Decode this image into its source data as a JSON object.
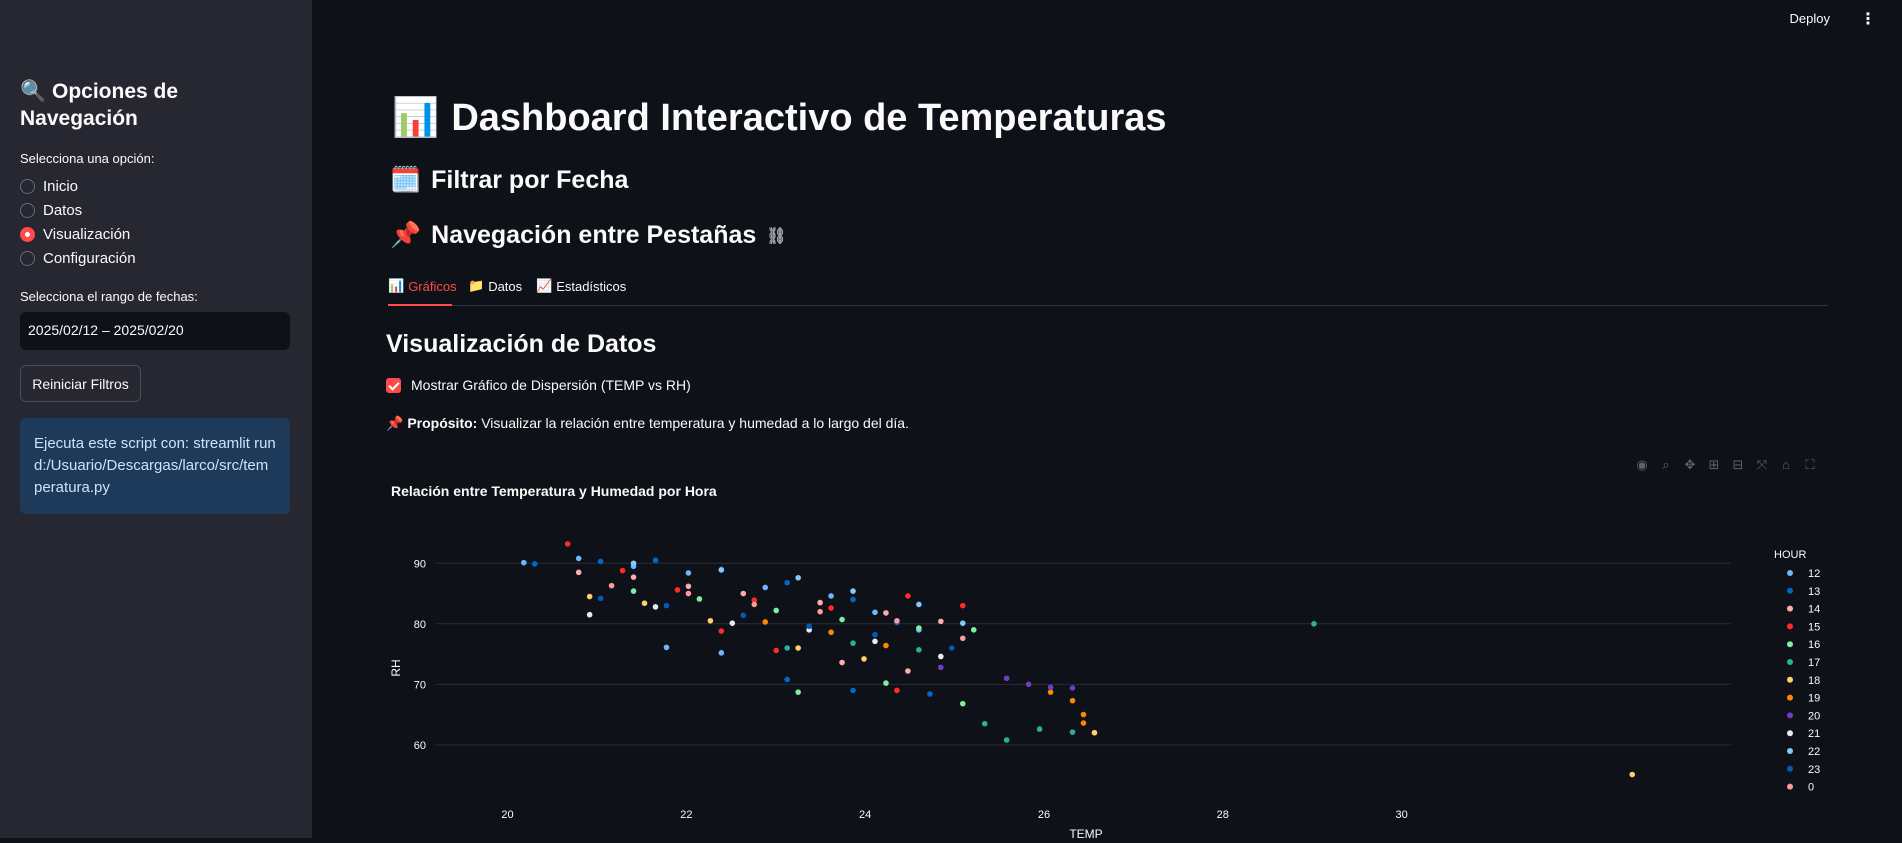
{
  "sidebar": {
    "title_icon": "search-icon",
    "title": "🔍 Opciones de Navegación",
    "radio_label": "Selecciona una opción:",
    "options": [
      "Inicio",
      "Datos",
      "Visualización",
      "Configuración"
    ],
    "selected": "Visualización",
    "date_label": "Selecciona el rango de fechas:",
    "date_value": "2025/02/12 – 2025/02/20",
    "reset_button": "Reiniciar Filtros",
    "info_text": "Ejecuta este script con: streamlit run d:/Usuario/Descargas/larco/src/temperatura.py"
  },
  "header": {
    "deploy": "Deploy",
    "menu_icon": "kebab-menu-icon"
  },
  "main": {
    "title_emoji": "📊",
    "title": "Dashboard Interactivo de Temperaturas",
    "filter_emoji": "🗓️",
    "filter_heading": "Filtrar por Fecha",
    "nav_emoji": "📌",
    "nav_heading": "Navegación entre Pestañas",
    "tabs": [
      {
        "emoji": "📊",
        "label": "Gráficos"
      },
      {
        "emoji": "📁",
        "label": "Datos"
      },
      {
        "emoji": "📈",
        "label": "Estadísticos"
      }
    ],
    "section_heading": "Visualización de Datos",
    "checkbox_label": "Mostrar Gráfico de Dispersión (TEMP vs RH)",
    "purpose_emoji": "📌",
    "purpose_label": "Propósito:",
    "purpose_text": "Visualizar la relación entre temperatura y humedad a lo largo del día."
  },
  "colors": {
    "accent": "#ff4b4b",
    "sidebar_bg": "#262730",
    "main_bg": "#0e1117",
    "info_bg": "#1e3a5a"
  },
  "chart_data": {
    "type": "scatter",
    "title": "Relación entre Temperatura y Humedad por Hora",
    "xlabel": "TEMP",
    "ylabel": "RH",
    "xlim": [
      19.2,
      31
    ],
    "ylim": [
      57,
      95
    ],
    "x_ticks": [
      20,
      22,
      24,
      26,
      28,
      30
    ],
    "y_ticks": [
      60,
      70,
      80,
      90
    ],
    "legend_title": "HOUR",
    "legend_position": "right",
    "series": [
      {
        "name": "12",
        "color": "#6fb5ff",
        "points": [
          [
            20.0,
            90.1
          ],
          [
            20.5,
            90.8
          ],
          [
            21.0,
            89.5
          ],
          [
            21.5,
            88.4
          ],
          [
            22.2,
            86.0
          ],
          [
            22.8,
            84.6
          ],
          [
            23.2,
            81.9
          ],
          [
            23.6,
            79.0
          ],
          [
            21.3,
            76.1
          ],
          [
            21.8,
            75.2
          ]
        ]
      },
      {
        "name": "13",
        "color": "#0068c9",
        "points": [
          [
            20.1,
            89.9
          ],
          [
            20.7,
            90.3
          ],
          [
            21.2,
            90.5
          ],
          [
            21.8,
            89.0
          ],
          [
            22.4,
            86.8
          ],
          [
            23.0,
            84.0
          ],
          [
            23.4,
            80.2
          ],
          [
            22.4,
            70.8
          ],
          [
            23.0,
            69.0
          ],
          [
            23.7,
            68.4
          ]
        ]
      },
      {
        "name": "14",
        "color": "#ffabab",
        "points": [
          [
            20.5,
            88.5
          ],
          [
            21.0,
            87.7
          ],
          [
            21.5,
            86.2
          ],
          [
            22.0,
            85.0
          ],
          [
            22.7,
            83.5
          ],
          [
            23.3,
            81.8
          ],
          [
            23.8,
            80.4
          ],
          [
            22.9,
            73.6
          ],
          [
            23.5,
            72.2
          ]
        ]
      },
      {
        "name": "15",
        "color": "#ff2b2b",
        "points": [
          [
            20.4,
            93.2
          ],
          [
            20.9,
            88.8
          ],
          [
            21.4,
            85.6
          ],
          [
            22.1,
            83.9
          ],
          [
            22.8,
            82.6
          ],
          [
            23.5,
            84.6
          ],
          [
            24.0,
            83.0
          ],
          [
            21.8,
            78.8
          ],
          [
            22.3,
            75.6
          ],
          [
            23.4,
            69.0
          ]
        ]
      },
      {
        "name": "16",
        "color": "#7defa1",
        "points": [
          [
            21.0,
            85.4
          ],
          [
            21.6,
            84.1
          ],
          [
            22.3,
            82.2
          ],
          [
            22.9,
            80.7
          ],
          [
            23.6,
            79.3
          ],
          [
            24.1,
            79.0
          ],
          [
            22.5,
            68.7
          ],
          [
            23.3,
            70.2
          ],
          [
            24.0,
            66.8
          ]
        ]
      },
      {
        "name": "17",
        "color": "#29b09d",
        "points": [
          [
            22.4,
            76.0
          ],
          [
            23.0,
            76.8
          ],
          [
            23.6,
            75.7
          ],
          [
            24.2,
            63.5
          ],
          [
            24.7,
            62.6
          ],
          [
            24.4,
            60.8
          ],
          [
            25.0,
            62.1
          ],
          [
            27.2,
            80.0
          ]
        ]
      },
      {
        "name": "18",
        "color": "#ffd16a",
        "points": [
          [
            20.6,
            84.5
          ],
          [
            21.1,
            83.4
          ],
          [
            21.7,
            80.5
          ],
          [
            22.5,
            76.0
          ],
          [
            23.1,
            74.2
          ],
          [
            25.2,
            62.0
          ],
          [
            30.1,
            55.1
          ]
        ]
      },
      {
        "name": "19",
        "color": "#ff8700",
        "points": [
          [
            22.2,
            80.3
          ],
          [
            22.8,
            78.6
          ],
          [
            23.3,
            76.4
          ],
          [
            24.8,
            68.7
          ],
          [
            25.0,
            67.3
          ],
          [
            25.1,
            65.0
          ],
          [
            25.1,
            63.6
          ]
        ]
      },
      {
        "name": "20",
        "color": "#6d3fc0",
        "points": [
          [
            24.4,
            71.0
          ],
          [
            24.6,
            70.0
          ],
          [
            24.8,
            69.5
          ],
          [
            25.0,
            69.4
          ],
          [
            23.8,
            72.8
          ]
        ]
      },
      {
        "name": "21",
        "color": "#e8eaf0",
        "points": [
          [
            20.6,
            81.5
          ],
          [
            21.2,
            82.8
          ],
          [
            21.9,
            80.1
          ],
          [
            22.6,
            79.0
          ],
          [
            23.2,
            77.1
          ],
          [
            23.8,
            74.6
          ]
        ]
      },
      {
        "name": "22",
        "color": "#83c9ff",
        "points": [
          [
            21.0,
            90.0
          ],
          [
            21.8,
            88.9
          ],
          [
            22.5,
            87.6
          ],
          [
            23.0,
            85.4
          ],
          [
            23.6,
            83.2
          ],
          [
            24.0,
            80.1
          ]
        ]
      },
      {
        "name": "23",
        "color": "#005cb8",
        "points": [
          [
            20.7,
            84.2
          ],
          [
            21.3,
            83.0
          ],
          [
            22.0,
            81.4
          ],
          [
            22.6,
            79.6
          ],
          [
            23.2,
            78.2
          ],
          [
            23.9,
            76.0
          ]
        ]
      },
      {
        "name": "0",
        "color": "#ff9a9a",
        "points": [
          [
            20.8,
            86.3
          ],
          [
            21.5,
            85.0
          ],
          [
            22.1,
            83.2
          ],
          [
            22.7,
            82.0
          ],
          [
            23.4,
            80.5
          ],
          [
            24.0,
            77.6
          ]
        ]
      }
    ]
  }
}
